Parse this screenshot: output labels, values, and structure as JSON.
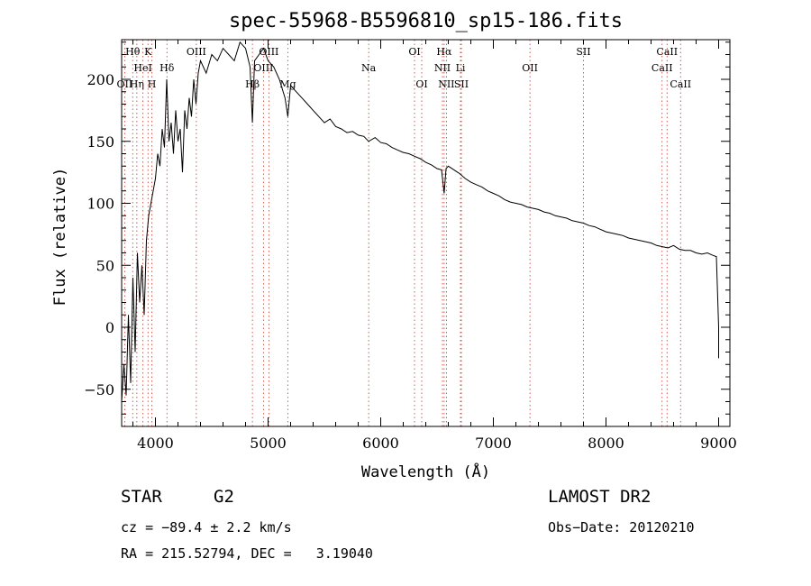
{
  "chart_data": {
    "type": "line",
    "title": "spec-55968-B5596810_sp15-186.fits",
    "xlabel": "Wavelength (Å)",
    "ylabel": "Flux (relative)",
    "xlim": [
      3700,
      9100
    ],
    "ylim": [
      -80,
      232
    ],
    "xticks": [
      4000,
      5000,
      6000,
      7000,
      8000,
      9000
    ],
    "yticks": [
      -50,
      0,
      50,
      100,
      150,
      200
    ],
    "grid": false,
    "line_color": "#000000",
    "marker_color": "#000000",
    "series": [
      {
        "x": [
          3700,
          3720,
          3740,
          3760,
          3780,
          3800,
          3820,
          3840,
          3860,
          3880,
          3900,
          3920,
          3940,
          3960,
          3980,
          4000,
          4020,
          4040,
          4060,
          4080,
          4100,
          4120,
          4140,
          4160,
          4180,
          4200,
          4220,
          4240,
          4260,
          4280,
          4300,
          4320,
          4340,
          4360,
          4380,
          4400,
          4450,
          4500,
          4550,
          4600,
          4650,
          4700,
          4750,
          4800,
          4840,
          4861,
          4880,
          4920,
          4960,
          5000,
          5050,
          5100,
          5150,
          5175,
          5200,
          5250,
          5300,
          5350,
          5400,
          5450,
          5500,
          5550,
          5600,
          5650,
          5700,
          5750,
          5800,
          5850,
          5893,
          5950,
          6000,
          6050,
          6100,
          6150,
          6200,
          6250,
          6300,
          6350,
          6400,
          6450,
          6500,
          6540,
          6563,
          6580,
          6600,
          6650,
          6700,
          6750,
          6800,
          6850,
          6900,
          6950,
          7000,
          7050,
          7100,
          7150,
          7200,
          7250,
          7300,
          7350,
          7400,
          7450,
          7500,
          7550,
          7600,
          7650,
          7700,
          7750,
          7800,
          7850,
          7900,
          7950,
          8000,
          8050,
          8100,
          8150,
          8200,
          8250,
          8300,
          8350,
          8400,
          8450,
          8500,
          8550,
          8600,
          8650,
          8700,
          8750,
          8800,
          8850,
          8900,
          8950,
          8980,
          9000,
          9000
        ],
        "y": [
          -60,
          -30,
          -55,
          10,
          -45,
          40,
          -20,
          60,
          20,
          50,
          10,
          70,
          90,
          100,
          110,
          120,
          140,
          130,
          160,
          145,
          200,
          150,
          165,
          140,
          175,
          150,
          160,
          125,
          175,
          160,
          185,
          170,
          200,
          180,
          205,
          215,
          205,
          220,
          215,
          225,
          220,
          215,
          230,
          225,
          210,
          165,
          215,
          220,
          225,
          215,
          210,
          200,
          185,
          170,
          195,
          190,
          185,
          180,
          175,
          170,
          165,
          168,
          162,
          160,
          157,
          158,
          155,
          154,
          150,
          153,
          149,
          148,
          145,
          143,
          141,
          140,
          138,
          136,
          133,
          131,
          128,
          127,
          108,
          128,
          130,
          127,
          124,
          120,
          117,
          115,
          113,
          110,
          108,
          106,
          103,
          101,
          100,
          99,
          97,
          96,
          95,
          93,
          92,
          90,
          89,
          88,
          86,
          85,
          84,
          82,
          81,
          79,
          77,
          76,
          75,
          74,
          72,
          71,
          70,
          69,
          68,
          66,
          65,
          64,
          66,
          63,
          62,
          62,
          60,
          59,
          60,
          58,
          57,
          0,
          -25
        ],
        "note_points": []
      }
    ],
    "lines": [
      {
        "label": "Hθ",
        "wave": 3798,
        "row": 1
      },
      {
        "label": "K",
        "wave": 3934,
        "row": 1
      },
      {
        "label": "HeI",
        "wave": 3889,
        "row": 2
      },
      {
        "label": "Hδ",
        "wave": 4102,
        "row": 2
      },
      {
        "label": "OIII",
        "wave": 4363,
        "row": 1
      },
      {
        "label": "OII",
        "wave": 3727,
        "row": 3
      },
      {
        "label": "Hη",
        "wave": 3835,
        "row": 3
      },
      {
        "label": "H",
        "wave": 3968,
        "row": 3
      },
      {
        "label": "OIII",
        "wave": 5007,
        "row": 1
      },
      {
        "label": "OIII",
        "wave": 4959,
        "row": 2
      },
      {
        "label": "Hβ",
        "wave": 4861,
        "row": 3
      },
      {
        "label": "Mg",
        "wave": 5175,
        "row": 3
      },
      {
        "label": "OI",
        "wave": 6300,
        "row": 1
      },
      {
        "label": "Hα",
        "wave": 6563,
        "row": 1
      },
      {
        "label": "Na",
        "wave": 5893,
        "row": 2
      },
      {
        "label": "NII",
        "wave": 6548,
        "row": 2
      },
      {
        "label": "Li",
        "wave": 6708,
        "row": 2
      },
      {
        "label": "OI",
        "wave": 6364,
        "row": 3
      },
      {
        "label": "NII",
        "wave": 6583,
        "row": 3
      },
      {
        "label": "SII",
        "wave": 6716,
        "row": 3
      },
      {
        "label": "OII",
        "wave": 7325,
        "row": 2
      },
      {
        "label": "SII",
        "wave": 7800,
        "row": 1
      },
      {
        "label": "CaII",
        "wave": 8542,
        "row": 1
      },
      {
        "label": "CaII",
        "wave": 8498,
        "row": 2
      },
      {
        "label": "CaII",
        "wave": 8662,
        "row": 3
      }
    ]
  },
  "info": {
    "object_class": "STAR",
    "subclass": "G2",
    "survey": "LAMOST DR2",
    "cz": "cz = −89.4 ± 2.2 km/s",
    "obs_date": "Obs−Date: 20120210",
    "coords": "RA = 215.52794, DEC =   3.19040"
  }
}
